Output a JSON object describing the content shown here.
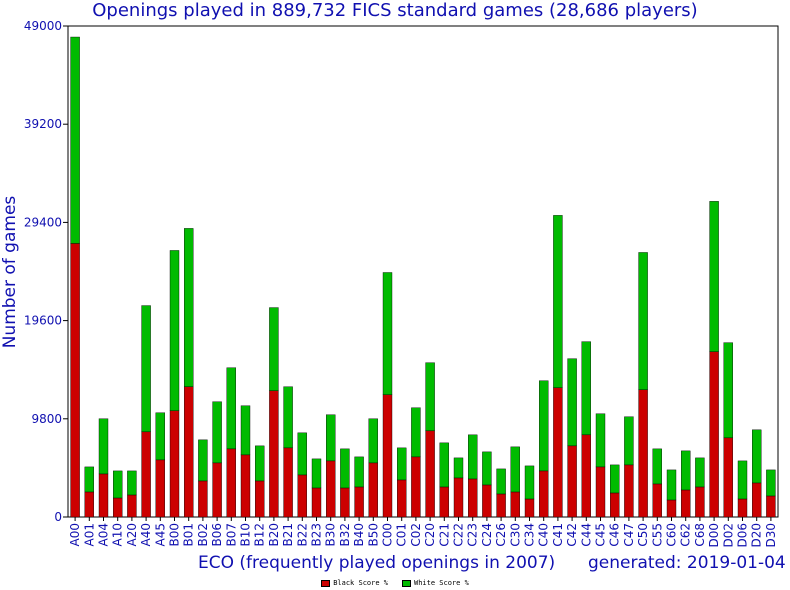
{
  "chart_data": {
    "type": "bar",
    "stacked": true,
    "title": "Openings played in 889,732 FICS standard games (28,686 players)",
    "xlabel": "ECO (frequently played openings in 2007)",
    "ylabel": "Number of games",
    "generated": "generated: 2019-01-04",
    "ylim": [
      0,
      49000
    ],
    "yticks": [
      "0",
      "9800",
      "19600",
      "29400",
      "39200",
      "49000"
    ],
    "grid": false,
    "legend_position": "bottom-center",
    "categories": [
      "A00",
      "A01",
      "A04",
      "A10",
      "A20",
      "A40",
      "A45",
      "B00",
      "B01",
      "B02",
      "B06",
      "B07",
      "B10",
      "B12",
      "B20",
      "B21",
      "B22",
      "B23",
      "B30",
      "B32",
      "B40",
      "B50",
      "C00",
      "C01",
      "C02",
      "C20",
      "C21",
      "C22",
      "C23",
      "C24",
      "C26",
      "C30",
      "C34",
      "C40",
      "C41",
      "C42",
      "C44",
      "C45",
      "C46",
      "C47",
      "C50",
      "C55",
      "C60",
      "C62",
      "C68",
      "D00",
      "D02",
      "D06",
      "D20",
      "D30"
    ],
    "series": [
      {
        "name": "Black Score %",
        "color": "#cc0000",
        "values": [
          27300,
          2500,
          4300,
          1900,
          2200,
          8500,
          5700,
          10600,
          13000,
          3600,
          5400,
          6800,
          6200,
          3600,
          12600,
          6900,
          4200,
          2900,
          5600,
          2900,
          3000,
          5400,
          12200,
          3700,
          6000,
          8600,
          3000,
          3900,
          3800,
          3200,
          2300,
          2500,
          1800,
          4600,
          12900,
          7100,
          8200,
          5000,
          2400,
          5200,
          12700,
          3300,
          1700,
          2700,
          3000,
          16500,
          7900,
          1800,
          3400,
          2100
        ]
      },
      {
        "name": "White Score %",
        "color": "#00bb00",
        "values": [
          20600,
          2500,
          5500,
          2700,
          2400,
          12600,
          4700,
          16000,
          15800,
          4100,
          6100,
          8100,
          4900,
          3500,
          8300,
          6100,
          4200,
          2900,
          4600,
          3900,
          3000,
          4400,
          12200,
          3200,
          4900,
          6800,
          4400,
          2000,
          4400,
          3300,
          2500,
          4500,
          3300,
          9000,
          17200,
          8700,
          9300,
          5300,
          2800,
          4800,
          13700,
          3500,
          3000,
          3900,
          2900,
          15000,
          9500,
          3800,
          5300,
          2600
        ]
      }
    ]
  }
}
